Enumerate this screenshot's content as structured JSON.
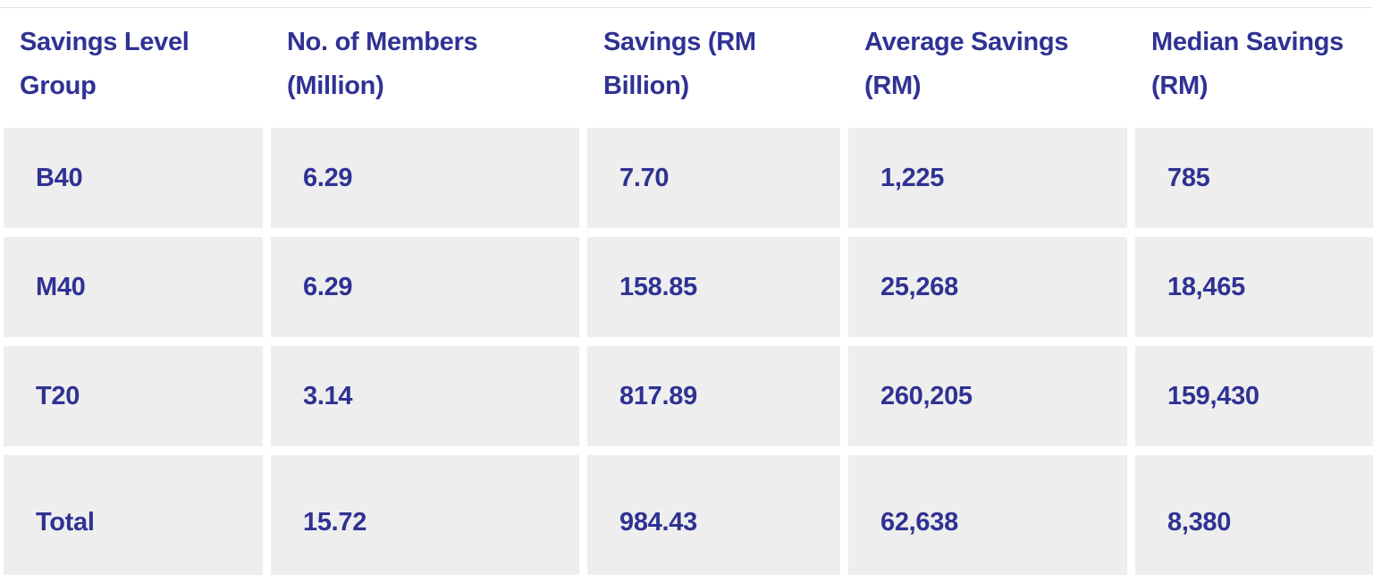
{
  "colors": {
    "text_navy": "#2f3293",
    "cell_gray": "#eeeeee",
    "border_gray": "#e3e3e3",
    "background": "#ffffff"
  },
  "chart_data": {
    "type": "table",
    "columns": [
      "Savings Level Group",
      "No. of Members (Million)",
      "Savings (RM Billion)",
      "Average Savings (RM)",
      "Median Savings (RM)"
    ],
    "rows": [
      [
        "B40",
        "6.29",
        "7.70",
        "1,225",
        "785"
      ],
      [
        "M40",
        "6.29",
        "158.85",
        "25,268",
        "18,465"
      ],
      [
        "T20",
        "3.14",
        "817.89",
        "260,205",
        "159,430"
      ],
      [
        "Total",
        "15.72",
        "984.43",
        "62,638",
        "8,380"
      ]
    ]
  }
}
